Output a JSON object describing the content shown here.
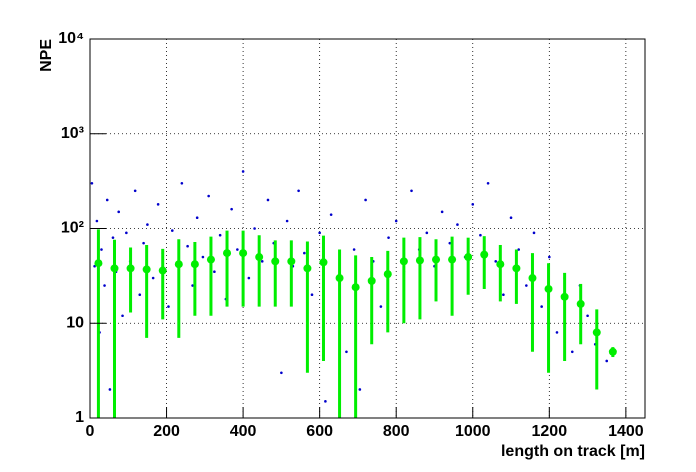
{
  "chart_data": {
    "type": "scatter",
    "x_label": "length on track [m]",
    "y_label": "NPE",
    "xlim": [
      0,
      1450
    ],
    "ylim": [
      1,
      10000
    ],
    "log_y": true,
    "grid": true,
    "xticks": [
      0,
      200,
      400,
      600,
      800,
      1000,
      1200,
      1400
    ],
    "yticks": [
      1,
      10,
      {
        "value": 100,
        "label": "10²"
      },
      {
        "value": 1000,
        "label": "10³"
      },
      {
        "value": 10000,
        "label": "10⁴"
      }
    ],
    "series": [
      {
        "color": "#0000cc",
        "x": [
          5,
          12,
          18,
          25,
          30,
          38,
          45,
          52,
          60,
          68,
          75,
          85,
          95,
          105,
          118,
          130,
          140,
          150,
          165,
          178,
          190,
          205,
          215,
          228,
          240,
          255,
          268,
          280,
          295,
          310,
          325,
          340,
          355,
          370,
          385,
          400,
          415,
          430,
          450,
          465,
          480,
          500,
          515,
          530,
          545,
          560,
          580,
          600,
          615,
          630,
          650,
          670,
          690,
          705,
          720,
          740,
          760,
          780,
          800,
          820,
          840,
          860,
          880,
          900,
          920,
          940,
          960,
          980,
          1000,
          1020,
          1040,
          1060,
          1080,
          1100,
          1120,
          1140,
          1160,
          1180,
          1200,
          1220,
          1240,
          1260,
          1280,
          1300,
          1320,
          1350
        ],
        "values": [
          300,
          40,
          120,
          8,
          60,
          25,
          200,
          2,
          80,
          35,
          150,
          12,
          90,
          45,
          250,
          20,
          70,
          110,
          30,
          180,
          55,
          15,
          95,
          40,
          300,
          65,
          25,
          130,
          50,
          220,
          35,
          85,
          18,
          160,
          60,
          400,
          30,
          100,
          45,
          200,
          70,
          3,
          120,
          40,
          250,
          55,
          20,
          90,
          1.5,
          140,
          30,
          5,
          60,
          2,
          200,
          45,
          15,
          80,
          120,
          35,
          250,
          60,
          90,
          40,
          150,
          70,
          110,
          50,
          180,
          85,
          300,
          45,
          20,
          130,
          60,
          25,
          90,
          15,
          50,
          8,
          30,
          5,
          25,
          12,
          6,
          4
        ]
      },
      {
        "color": "#00ee00",
        "errorbars": true,
        "x": [
          22,
          64,
          106,
          148,
          190,
          232,
          274,
          316,
          358,
          400,
          442,
          484,
          526,
          568,
          610,
          652,
          694,
          736,
          778,
          820,
          862,
          904,
          946,
          988,
          1030,
          1072,
          1114,
          1156,
          1198,
          1240,
          1282,
          1324,
          1366
        ],
        "values": [
          43,
          38,
          38,
          37,
          36,
          42,
          42,
          47,
          55,
          55,
          50,
          45,
          45,
          38,
          44,
          30,
          24,
          28,
          33,
          45,
          46,
          47,
          47,
          50,
          53,
          42,
          38,
          30,
          23,
          19,
          16,
          8,
          5
        ],
        "errors": [
          55,
          38,
          25,
          30,
          25,
          35,
          30,
          35,
          40,
          40,
          35,
          30,
          30,
          35,
          40,
          30,
          28,
          22,
          25,
          35,
          35,
          30,
          35,
          30,
          30,
          25,
          22,
          25,
          20,
          15,
          10,
          6,
          0.6
        ]
      }
    ]
  }
}
